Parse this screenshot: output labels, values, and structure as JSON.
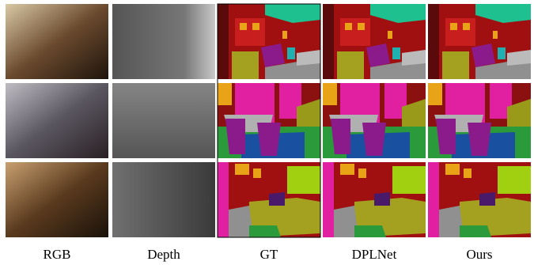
{
  "columns": [
    {
      "label": "RGB"
    },
    {
      "label": "Depth"
    },
    {
      "label": "GT"
    },
    {
      "label": "DPLNet"
    },
    {
      "label": "Ours"
    }
  ]
}
